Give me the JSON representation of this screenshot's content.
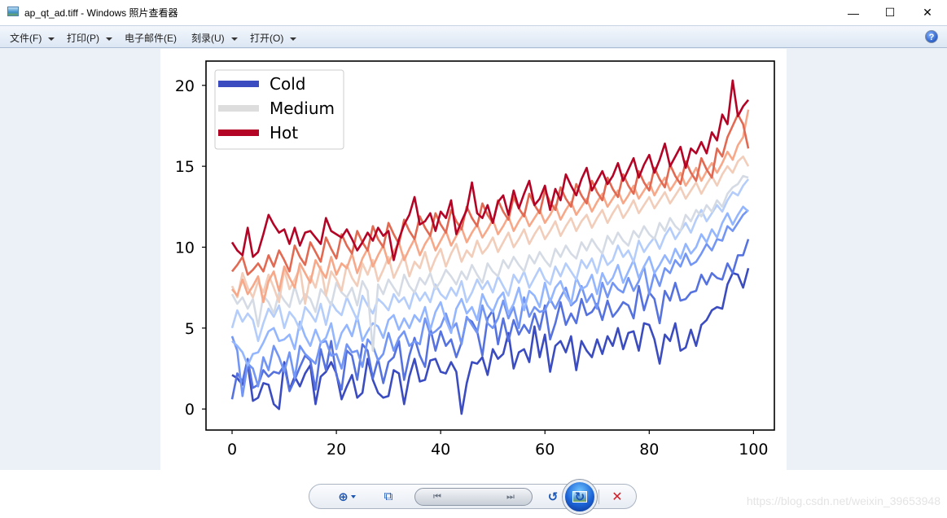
{
  "window": {
    "title": "ap_qt_ad.tiff - Windows 照片查看器",
    "controls": {
      "minimize": "—",
      "maximize": "☐",
      "close": "✕"
    }
  },
  "menubar": {
    "items": [
      {
        "label": "文件(F)",
        "has_dropdown": true
      },
      {
        "label": "打印(P)",
        "has_dropdown": true
      },
      {
        "label": "电子邮件(E)",
        "has_dropdown": false
      },
      {
        "label": "刻录(U)",
        "has_dropdown": true
      },
      {
        "label": "打开(O)",
        "has_dropdown": true
      }
    ],
    "help_label": "?"
  },
  "toolbar": {
    "zoom_icon": "⊕",
    "fit_icon": "⧉",
    "prev_icon": "⏮",
    "next_icon": "⏭",
    "rotate_ccw_icon": "↺",
    "rotate_cw_icon": "↻",
    "delete_icon": "✕"
  },
  "watermark": "https://blog.csdn.net/weixin_39653948",
  "chart_data": {
    "type": "line",
    "title": "",
    "xlabel": "",
    "ylabel": "",
    "xlim": [
      -5,
      104
    ],
    "ylim": [
      -1.3,
      21.5
    ],
    "xticks": [
      0,
      20,
      40,
      60,
      80,
      100
    ],
    "yticks": [
      0,
      5,
      10,
      15,
      20
    ],
    "grid": false,
    "colormap": "coolwarm",
    "legend": {
      "position": "upper left",
      "entries": [
        {
          "label": "Cold",
          "color": "#3b4cc0"
        },
        {
          "label": "Medium",
          "color": "#dddddd"
        },
        {
          "label": "Hot",
          "color": "#b40426"
        }
      ]
    },
    "series": [
      {
        "name": "line0",
        "color": "#3b4cc0",
        "values": [
          2.1,
          1.9,
          1.5,
          2.8,
          0.5,
          0.7,
          1.6,
          1.5,
          0.3,
          0.0,
          2.9,
          1.2,
          2.0,
          1.4,
          2.2,
          2.7,
          0.3,
          2.0,
          2.3,
          2.9,
          2.2,
          0.6,
          1.4,
          2.1,
          0.7,
          1.0,
          3.1,
          1.8,
          1.0,
          0.7,
          0.8,
          2.4,
          2.2,
          0.3,
          2.0,
          3.1,
          1.7,
          1.8,
          3.0,
          3.1,
          2.3,
          2.2,
          2.9,
          2.3,
          -0.3,
          1.6,
          2.9,
          2.8,
          3.2,
          2.1,
          3.7,
          3.1,
          3.4,
          4.7,
          2.5,
          3.5,
          3.7,
          2.9,
          5.1,
          3.2,
          4.6,
          2.3,
          3.9,
          4.2,
          3.5,
          4.5,
          2.4,
          4.2,
          3.6,
          3.2,
          4.3,
          3.4,
          4.5,
          3.9,
          5.0,
          3.7,
          4.7,
          4.8,
          3.6,
          5.3,
          5.2,
          4.3,
          2.8,
          4.6,
          4.2,
          5.3,
          3.6,
          3.8,
          4.9,
          3.9,
          5.2,
          5.5,
          6.1,
          6.3,
          6.2,
          7.7,
          8.4,
          8.3,
          7.5,
          8.7
        ]
      },
      {
        "name": "line1",
        "color": "#5572df",
        "values": [
          0.6,
          2.2,
          1.7,
          3.1,
          1.3,
          1.5,
          2.4,
          2.0,
          2.3,
          2.2,
          2.7,
          1.1,
          1.8,
          2.6,
          3.3,
          3.0,
          1.2,
          3.7,
          2.4,
          4.2,
          2.1,
          1.2,
          3.6,
          3.3,
          1.8,
          4.0,
          3.6,
          1.9,
          3.1,
          1.6,
          2.9,
          3.2,
          4.2,
          1.8,
          3.3,
          4.4,
          3.3,
          2.6,
          5.0,
          3.6,
          4.8,
          3.9,
          4.3,
          3.2,
          4.1,
          5.6,
          5.4,
          4.8,
          3.3,
          5.6,
          6.1,
          4.0,
          5.6,
          4.2,
          5.5,
          4.6,
          5.2,
          4.7,
          5.9,
          4.9,
          6.4,
          4.3,
          5.3,
          6.6,
          5.2,
          5.9,
          5.3,
          6.8,
          5.8,
          6.0,
          6.5,
          5.5,
          6.7,
          5.7,
          6.1,
          6.6,
          6.4,
          5.6,
          7.6,
          6.1,
          7.2,
          6.8,
          5.3,
          7.3,
          6.7,
          7.8,
          6.7,
          6.8,
          7.2,
          7.3,
          8.3,
          7.7,
          8.4,
          8.1,
          8.0,
          9.0,
          8.4,
          9.5,
          9.5,
          10.5
        ]
      },
      {
        "name": "line2",
        "color": "#7396f5",
        "values": [
          4.5,
          3.6,
          0.8,
          2.8,
          2.5,
          1.4,
          3.2,
          2.4,
          3.9,
          3.2,
          2.3,
          3.5,
          1.9,
          3.9,
          3.4,
          3.1,
          2.8,
          4.1,
          4.2,
          3.3,
          3.4,
          2.5,
          4.0,
          3.5,
          3.6,
          2.6,
          4.3,
          3.9,
          3.0,
          3.4,
          4.7,
          3.6,
          4.4,
          4.8,
          3.9,
          4.2,
          4.0,
          5.6,
          4.6,
          4.8,
          5.1,
          5.9,
          4.9,
          5.3,
          4.0,
          5.7,
          5.2,
          4.7,
          6.4,
          5.3,
          5.0,
          5.6,
          6.7,
          5.6,
          6.3,
          5.0,
          6.9,
          5.7,
          6.3,
          6.0,
          6.1,
          6.8,
          6.2,
          6.9,
          7.5,
          6.4,
          6.7,
          7.6,
          6.6,
          7.1,
          6.2,
          7.8,
          6.9,
          7.8,
          7.4,
          7.2,
          8.1,
          7.3,
          7.9,
          8.8,
          7.1,
          8.4,
          7.6,
          8.7,
          8.4,
          9.2,
          8.8,
          9.6,
          8.9,
          9.1,
          9.6,
          10.2,
          9.8,
          10.5,
          10.4,
          11.3,
          11.0,
          11.5,
          12.0,
          12.3
        ]
      },
      {
        "name": "line3",
        "color": "#94b6ff",
        "values": [
          4.2,
          3.9,
          3.5,
          2.7,
          3.4,
          3.5,
          4.1,
          4.8,
          5.0,
          4.2,
          4.3,
          4.6,
          3.7,
          5.4,
          4.5,
          3.9,
          4.9,
          4.1,
          4.4,
          5.3,
          3.7,
          4.7,
          5.2,
          4.5,
          5.7,
          4.2,
          4.8,
          5.3,
          5.1,
          4.4,
          5.5,
          5.8,
          4.9,
          5.6,
          5.0,
          5.8,
          5.4,
          6.3,
          4.9,
          6.0,
          6.6,
          5.5,
          4.7,
          6.2,
          6.8,
          5.9,
          6.3,
          5.5,
          7.1,
          6.4,
          6.0,
          6.8,
          7.2,
          5.9,
          6.5,
          7.5,
          6.1,
          7.3,
          7.0,
          6.3,
          7.8,
          6.6,
          7.5,
          7.9,
          7.0,
          6.5,
          8.1,
          7.4,
          7.6,
          8.3,
          7.1,
          8.4,
          7.7,
          8.1,
          8.9,
          7.8,
          8.5,
          9.2,
          8.1,
          8.8,
          9.4,
          8.4,
          8.9,
          9.5,
          9.0,
          9.9,
          9.3,
          10.2,
          9.6,
          10.0,
          10.8,
          10.3,
          11.1,
          10.6,
          11.5,
          12.1,
          11.4,
          12.0,
          12.5,
          12.2
        ]
      },
      {
        "name": "line4",
        "color": "#b5cdfa",
        "values": [
          5.0,
          6.1,
          5.4,
          5.9,
          5.5,
          4.2,
          5.3,
          6.2,
          5.7,
          6.4,
          5.0,
          6.0,
          5.6,
          4.9,
          6.3,
          5.9,
          5.4,
          6.5,
          5.2,
          6.6,
          6.1,
          5.8,
          6.9,
          6.2,
          5.5,
          7.0,
          6.4,
          5.9,
          6.8,
          6.5,
          6.1,
          7.1,
          6.6,
          6.9,
          6.2,
          7.3,
          6.7,
          7.2,
          6.6,
          7.7,
          7.1,
          6.8,
          7.5,
          7.0,
          7.9,
          6.6,
          7.2,
          8.0,
          7.4,
          7.9,
          7.2,
          8.2,
          7.6,
          7.0,
          8.3,
          7.8,
          8.5,
          7.5,
          8.1,
          8.7,
          8.0,
          7.7,
          8.8,
          8.2,
          9.0,
          8.5,
          8.0,
          9.2,
          8.7,
          9.3,
          8.4,
          9.6,
          8.9,
          9.2,
          10.1,
          9.4,
          9.8,
          9.1,
          10.4,
          9.7,
          10.2,
          10.6,
          9.9,
          10.7,
          11.2,
          10.5,
          11.0,
          11.5,
          10.9,
          11.7,
          12.3,
          11.6,
          12.1,
          12.6,
          12.2,
          12.9,
          13.4,
          13.2,
          13.8,
          14.2
        ]
      },
      {
        "name": "line5",
        "color": "#d5dbe5",
        "values": [
          7.1,
          6.5,
          6.9,
          6.2,
          6.8,
          5.1,
          7.0,
          6.6,
          5.9,
          7.2,
          6.7,
          6.3,
          7.6,
          6.5,
          7.1,
          6.8,
          6.0,
          7.4,
          7.0,
          6.4,
          7.8,
          7.2,
          6.9,
          7.5,
          6.4,
          7.9,
          7.3,
          3.6,
          7.7,
          7.1,
          8.0,
          7.5,
          7.0,
          8.3,
          7.6,
          7.2,
          8.1,
          7.7,
          8.4,
          7.4,
          7.9,
          8.6,
          8.2,
          7.7,
          8.5,
          8.0,
          8.9,
          8.3,
          7.8,
          9.0,
          8.5,
          8.2,
          9.2,
          8.7,
          9.4,
          8.9,
          8.5,
          9.5,
          9.0,
          9.7,
          9.2,
          8.8,
          9.9,
          9.4,
          10.1,
          9.6,
          9.3,
          10.3,
          9.8,
          10.5,
          10.0,
          9.6,
          10.7,
          10.2,
          10.9,
          10.4,
          10.1,
          11.0,
          10.6,
          11.3,
          10.8,
          10.5,
          11.5,
          11.0,
          11.8,
          11.3,
          11.0,
          12.0,
          11.6,
          12.3,
          11.9,
          12.6,
          12.2,
          12.9,
          12.5,
          13.3,
          13.7,
          13.9,
          14.4,
          14.3
        ]
      },
      {
        "name": "line6",
        "color": "#f1cdba",
        "values": [
          7.6,
          6.9,
          8.4,
          7.5,
          6.9,
          7.9,
          7.2,
          8.3,
          7.5,
          6.6,
          8.6,
          7.4,
          8.0,
          8.7,
          6.5,
          8.2,
          7.5,
          8.8,
          7.0,
          8.5,
          8.0,
          7.3,
          8.9,
          8.1,
          7.6,
          9.0,
          8.3,
          9.2,
          7.9,
          8.6,
          9.4,
          8.1,
          8.8,
          9.5,
          8.2,
          9.1,
          8.7,
          9.7,
          8.5,
          9.3,
          9.9,
          8.8,
          9.6,
          10.2,
          9.1,
          9.8,
          9.4,
          10.4,
          9.6,
          10.0,
          10.6,
          9.7,
          10.3,
          10.9,
          10.0,
          10.5,
          11.1,
          10.2,
          10.8,
          11.3,
          10.5,
          11.0,
          11.6,
          10.7,
          11.3,
          11.8,
          11.0,
          11.6,
          12.0,
          11.2,
          11.8,
          12.3,
          11.5,
          12.1,
          12.6,
          11.8,
          12.3,
          12.9,
          12.1,
          12.6,
          13.1,
          12.4,
          12.9,
          13.4,
          12.7,
          13.2,
          13.7,
          13.0,
          13.5,
          14.0,
          13.3,
          13.9,
          14.4,
          13.8,
          14.5,
          15.0,
          14.6,
          15.3,
          15.6,
          15.0
        ]
      },
      {
        "name": "line7",
        "color": "#f7a889",
        "values": [
          7.4,
          7.0,
          8.0,
          7.1,
          7.6,
          8.2,
          6.6,
          7.9,
          8.5,
          7.3,
          8.8,
          8.1,
          7.5,
          9.0,
          8.4,
          7.8,
          9.2,
          8.6,
          8.1,
          9.4,
          8.3,
          9.0,
          8.7,
          9.6,
          8.4,
          9.3,
          9.9,
          8.8,
          9.5,
          10.1,
          9.0,
          9.7,
          10.3,
          9.2,
          9.9,
          10.5,
          9.5,
          10.2,
          10.7,
          9.8,
          10.4,
          11.0,
          10.1,
          10.7,
          11.2,
          10.3,
          10.9,
          11.4,
          10.6,
          11.1,
          11.7,
          10.8,
          11.3,
          11.9,
          11.0,
          11.6,
          12.1,
          11.3,
          11.8,
          12.3,
          11.5,
          12.0,
          12.6,
          11.7,
          12.3,
          12.8,
          12.0,
          12.5,
          13.0,
          12.2,
          12.8,
          13.3,
          12.5,
          13.0,
          13.5,
          12.7,
          13.2,
          13.8,
          13.0,
          13.5,
          14.0,
          13.2,
          13.8,
          14.3,
          13.5,
          14.0,
          14.6,
          13.8,
          14.3,
          14.9,
          14.1,
          14.7,
          15.2,
          14.6,
          15.2,
          15.9,
          15.4,
          16.3,
          16.8,
          18.5
        ]
      },
      {
        "name": "line8",
        "color": "#e26952",
        "values": [
          8.5,
          8.9,
          9.4,
          8.3,
          8.6,
          9.0,
          8.5,
          9.5,
          8.8,
          9.8,
          9.2,
          8.5,
          10.1,
          9.4,
          8.9,
          10.3,
          9.7,
          9.1,
          10.6,
          9.9,
          9.3,
          10.8,
          10.1,
          9.6,
          11.0,
          10.3,
          9.8,
          11.3,
          10.5,
          10.0,
          11.5,
          10.8,
          10.2,
          11.7,
          11.0,
          10.5,
          11.9,
          11.2,
          10.7,
          12.1,
          11.4,
          10.9,
          12.3,
          11.6,
          11.1,
          12.5,
          11.8,
          11.3,
          12.7,
          12.0,
          11.5,
          12.9,
          12.2,
          11.7,
          13.1,
          12.4,
          11.9,
          13.3,
          12.6,
          12.1,
          13.5,
          12.8,
          12.3,
          13.7,
          13.0,
          12.5,
          13.9,
          13.2,
          12.7,
          14.1,
          13.4,
          12.9,
          14.3,
          13.6,
          13.1,
          14.5,
          13.8,
          13.3,
          14.7,
          14.0,
          13.5,
          14.9,
          14.2,
          13.7,
          15.1,
          14.4,
          13.9,
          15.3,
          14.6,
          14.1,
          15.5,
          14.8,
          14.3,
          16.1,
          15.6,
          16.8,
          17.5,
          18.2,
          17.6,
          16.1
        ]
      },
      {
        "name": "line9",
        "color": "#b40426",
        "values": [
          10.3,
          9.8,
          9.5,
          11.2,
          9.4,
          9.7,
          10.8,
          12.0,
          11.4,
          10.9,
          11.1,
          10.2,
          11.2,
          10.1,
          10.9,
          11.0,
          10.6,
          10.2,
          11.8,
          11.0,
          10.8,
          10.6,
          11.1,
          10.5,
          9.8,
          10.3,
          10.9,
          10.4,
          11.2,
          10.7,
          11.0,
          9.2,
          10.5,
          11.4,
          12.0,
          13.1,
          11.4,
          11.6,
          12.1,
          11.0,
          12.2,
          11.8,
          12.9,
          10.8,
          11.6,
          12.3,
          14.0,
          12.1,
          11.8,
          12.6,
          11.5,
          12.8,
          13.2,
          12.0,
          13.5,
          12.4,
          13.3,
          14.1,
          12.6,
          13.0,
          13.8,
          12.3,
          13.6,
          12.9,
          14.5,
          13.8,
          13.2,
          14.2,
          14.9,
          13.5,
          14.1,
          14.7,
          13.9,
          14.4,
          15.2,
          14.1,
          14.8,
          15.5,
          14.3,
          15.1,
          15.7,
          14.6,
          15.4,
          16.4,
          15.0,
          15.6,
          16.2,
          14.9,
          16.1,
          15.8,
          16.5,
          15.8,
          17.1,
          16.6,
          18.2,
          17.6,
          20.3,
          18.1,
          18.7,
          19.1
        ]
      }
    ]
  }
}
